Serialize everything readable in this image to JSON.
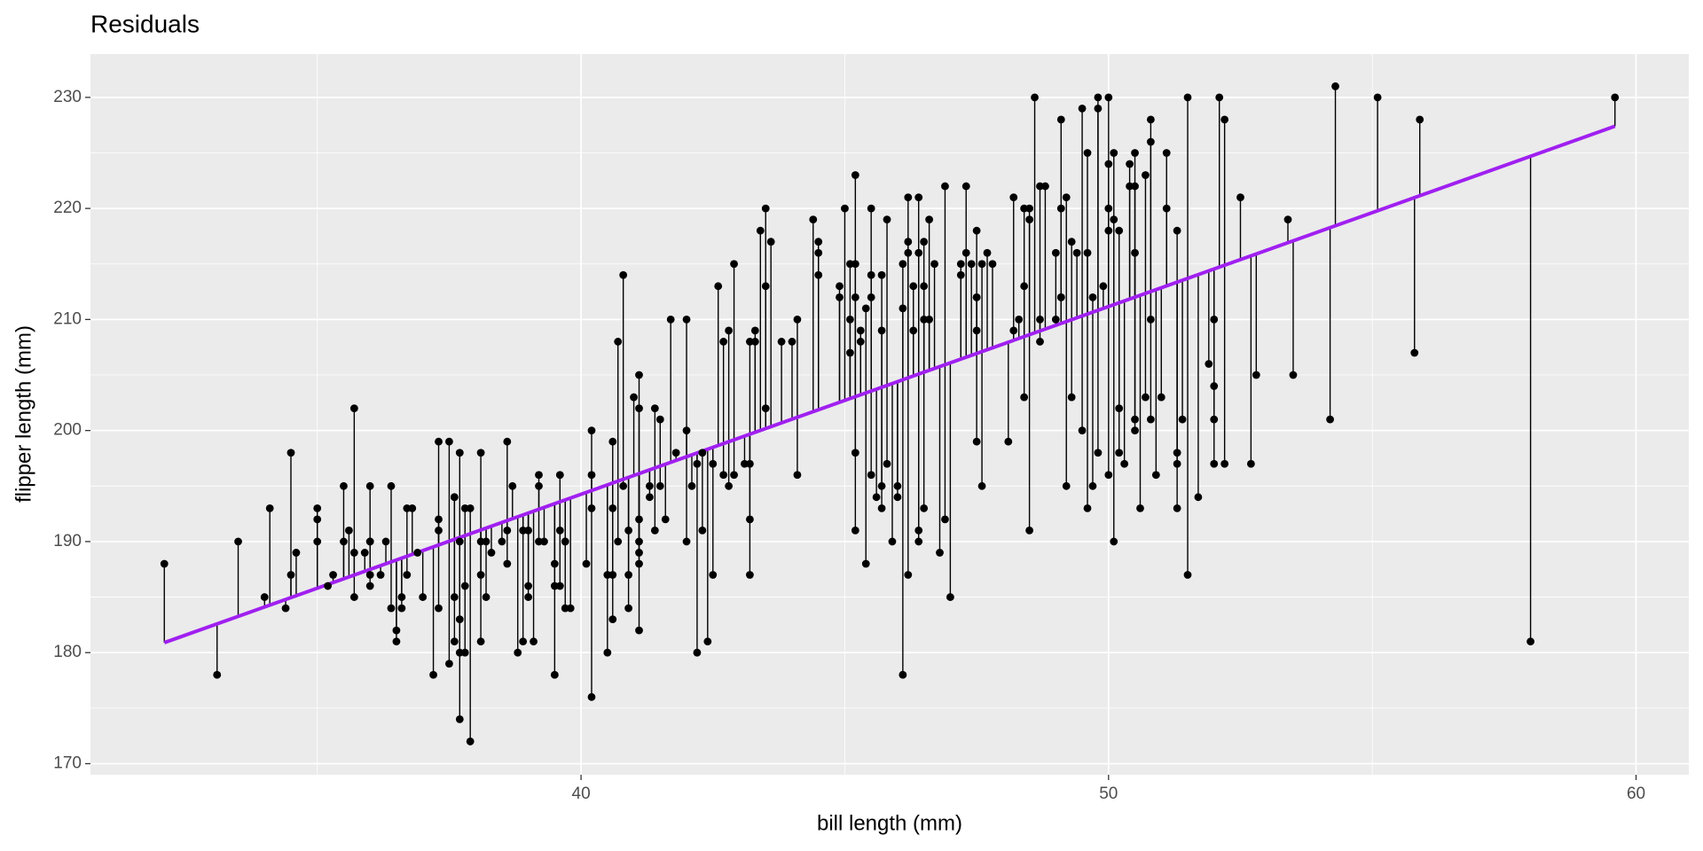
{
  "chart_data": {
    "type": "scatter",
    "title": "Residuals",
    "x_label": "bill length (mm)",
    "y_label": "flipper length (mm)",
    "xlim": [
      30.7,
      61.0
    ],
    "ylim": [
      169.0,
      233.9
    ],
    "xticks": [
      40,
      50,
      60
    ],
    "yticks": [
      170,
      180,
      190,
      200,
      210,
      220,
      230
    ],
    "xminor": [
      35,
      45,
      55
    ],
    "yminor": [
      175,
      185,
      195,
      205,
      215,
      225
    ],
    "grid": true,
    "point_color": "#000000",
    "fit": {
      "x": [
        32.1,
        59.6
      ],
      "values": [
        180.9,
        227.4
      ],
      "color": "#a020f0"
    },
    "x": [
      32.1,
      33.1,
      33.5,
      34.0,
      34.1,
      34.4,
      34.5,
      34.5,
      34.6,
      35.0,
      35.0,
      35.0,
      35.2,
      35.3,
      35.5,
      35.5,
      35.6,
      35.7,
      35.7,
      35.7,
      35.9,
      36.0,
      36.0,
      36.0,
      36.0,
      36.0,
      36.2,
      36.3,
      36.4,
      36.4,
      36.5,
      36.5,
      36.6,
      36.6,
      36.7,
      36.7,
      36.8,
      36.9,
      37.0,
      37.2,
      37.3,
      37.3,
      37.3,
      37.3,
      37.5,
      37.5,
      37.6,
      37.6,
      37.6,
      37.6,
      37.7,
      37.7,
      37.7,
      37.7,
      37.7,
      37.8,
      37.8,
      37.8,
      37.9,
      37.9,
      38.1,
      38.1,
      38.1,
      38.1,
      38.2,
      38.2,
      38.3,
      38.5,
      38.6,
      38.6,
      38.6,
      38.7,
      38.8,
      38.9,
      38.9,
      39.0,
      39.0,
      39.0,
      39.1,
      39.2,
      39.2,
      39.2,
      39.3,
      39.5,
      39.5,
      39.5,
      39.6,
      39.6,
      39.6,
      39.7,
      39.7,
      39.7,
      39.8,
      40.1,
      40.2,
      40.2,
      40.2,
      40.2,
      40.5,
      40.5,
      40.6,
      40.6,
      40.6,
      40.6,
      40.7,
      40.7,
      40.8,
      40.8,
      40.9,
      40.9,
      40.9,
      41.0,
      41.1,
      41.1,
      41.1,
      41.1,
      41.1,
      41.1,
      41.1,
      41.3,
      41.3,
      41.4,
      41.4,
      41.5,
      41.5,
      41.6,
      41.7,
      41.8,
      42.0,
      42.0,
      42.0,
      42.1,
      42.2,
      42.2,
      42.3,
      42.3,
      42.4,
      42.5,
      42.5,
      42.6,
      42.7,
      42.7,
      42.8,
      42.8,
      42.9,
      42.9,
      43.1,
      43.2,
      43.2,
      43.2,
      43.2,
      43.3,
      43.3,
      43.4,
      43.5,
      43.5,
      43.5,
      43.6,
      43.8,
      44.0,
      44.1,
      44.1,
      44.4,
      44.5,
      44.5,
      44.5,
      44.9,
      44.9,
      45.0,
      45.1,
      45.1,
      45.1,
      45.2,
      45.2,
      45.2,
      45.2,
      45.2,
      45.3,
      45.3,
      45.4,
      45.4,
      45.5,
      45.5,
      45.5,
      45.5,
      45.6,
      45.7,
      45.7,
      45.7,
      45.7,
      45.8,
      45.8,
      45.9,
      46.0,
      46.0,
      46.1,
      46.1,
      46.1,
      46.2,
      46.2,
      46.2,
      46.2,
      46.3,
      46.3,
      46.4,
      46.4,
      46.4,
      46.4,
      46.5,
      46.5,
      46.5,
      46.5,
      46.6,
      46.6,
      46.7,
      46.8,
      46.9,
      46.9,
      47.0,
      47.2,
      47.2,
      47.3,
      47.3,
      47.4,
      47.5,
      47.5,
      47.5,
      47.5,
      47.5,
      47.6,
      47.6,
      47.7,
      47.8,
      48.1,
      48.2,
      48.2,
      48.3,
      48.4,
      48.4,
      48.4,
      48.5,
      48.5,
      48.5,
      48.6,
      48.7,
      48.7,
      48.7,
      48.8,
      49.0,
      49.0,
      49.1,
      49.1,
      49.1,
      49.1,
      49.2,
      49.2,
      49.3,
      49.3,
      49.4,
      49.5,
      49.5,
      49.6,
      49.6,
      49.6,
      49.7,
      49.7,
      49.8,
      49.8,
      49.8,
      49.9,
      50.0,
      50.0,
      50.0,
      50.0,
      50.0,
      50.1,
      50.1,
      50.1,
      50.2,
      50.2,
      50.2,
      50.3,
      50.4,
      50.4,
      50.5,
      50.5,
      50.5,
      50.5,
      50.5,
      50.6,
      50.7,
      50.7,
      50.8,
      50.8,
      50.8,
      50.8,
      50.9,
      51.0,
      51.1,
      51.1,
      51.3,
      51.3,
      51.3,
      51.3,
      51.4,
      51.5,
      51.5,
      51.7,
      51.9,
      52.0,
      52.0,
      52.0,
      52.0,
      52.1,
      52.2,
      52.2,
      52.5,
      52.7,
      52.8,
      53.4,
      53.5,
      54.2,
      54.3,
      55.1,
      55.8,
      55.9,
      58.0,
      59.6
    ],
    "values": [
      188,
      178,
      190,
      185,
      193,
      184,
      187,
      198,
      189,
      192,
      190,
      193,
      186,
      187,
      195,
      190,
      191,
      202,
      185,
      189,
      189,
      190,
      187,
      195,
      186,
      190,
      187,
      190,
      195,
      184,
      182,
      181,
      185,
      184,
      193,
      187,
      193,
      189,
      185,
      178,
      192,
      191,
      199,
      184,
      199,
      179,
      194,
      185,
      181,
      194,
      198,
      183,
      180,
      190,
      174,
      193,
      186,
      180,
      172,
      193,
      181,
      198,
      190,
      187,
      185,
      190,
      189,
      190,
      199,
      188,
      191,
      195,
      180,
      191,
      181,
      186,
      191,
      185,
      181,
      196,
      190,
      195,
      190,
      178,
      188,
      186,
      196,
      191,
      186,
      190,
      184,
      190,
      184,
      188,
      176,
      200,
      193,
      196,
      180,
      187,
      199,
      183,
      187,
      193,
      190,
      208,
      195,
      214,
      191,
      184,
      187,
      203,
      182,
      205,
      202,
      189,
      188,
      190,
      192,
      194,
      195,
      202,
      191,
      201,
      195,
      192,
      210,
      198,
      190,
      200,
      210,
      195,
      197,
      180,
      198,
      191,
      181,
      197,
      187,
      213,
      208,
      196,
      209,
      195,
      215,
      196,
      197,
      208,
      192,
      197,
      187,
      209,
      208,
      218,
      213,
      202,
      220,
      217,
      208,
      208,
      196,
      210,
      219,
      216,
      217,
      214,
      213,
      212,
      220,
      207,
      215,
      210,
      223,
      215,
      198,
      191,
      212,
      208,
      209,
      211,
      188,
      214,
      196,
      220,
      212,
      194,
      209,
      195,
      193,
      214,
      219,
      197,
      190,
      195,
      194,
      215,
      178,
      211,
      217,
      187,
      221,
      216,
      209,
      213,
      190,
      191,
      221,
      216,
      217,
      213,
      210,
      193,
      219,
      210,
      215,
      189,
      222,
      192,
      185,
      215,
      214,
      216,
      222,
      215,
      212,
      218,
      209,
      199,
      212,
      215,
      195,
      216,
      215,
      199,
      209,
      221,
      210,
      213,
      203,
      220,
      191,
      219,
      220,
      230,
      222,
      208,
      210,
      222,
      216,
      210,
      212,
      228,
      220,
      212,
      221,
      195,
      217,
      203,
      216,
      229,
      200,
      225,
      193,
      216,
      195,
      212,
      229,
      230,
      198,
      213,
      230,
      224,
      220,
      218,
      196,
      219,
      190,
      225,
      218,
      202,
      198,
      197,
      224,
      222,
      216,
      225,
      200,
      201,
      222,
      193,
      223,
      203,
      226,
      228,
      210,
      201,
      196,
      203,
      220,
      225,
      218,
      193,
      197,
      198,
      201,
      230,
      187,
      194,
      206,
      201,
      197,
      210,
      204,
      230,
      228,
      197,
      221,
      197,
      205,
      219,
      205,
      201,
      231,
      230,
      207,
      228,
      181,
      230
    ]
  }
}
